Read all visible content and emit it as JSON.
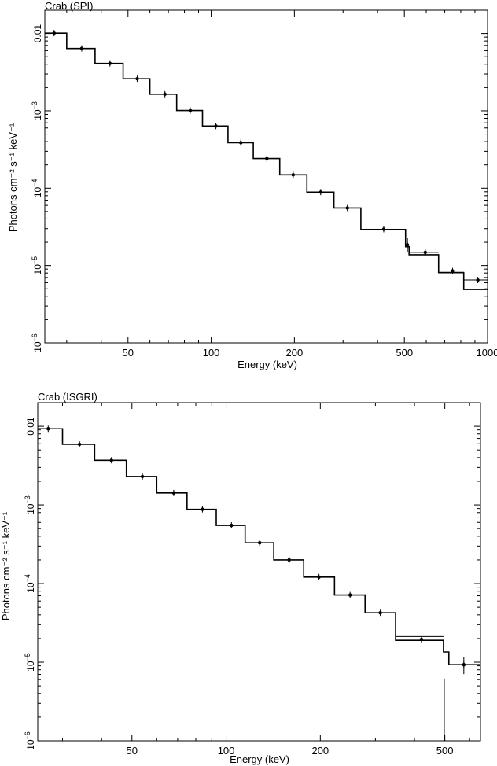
{
  "chart_data": [
    {
      "type": "step",
      "title": "Crab (SPI)",
      "xlabel": "Energy (keV)",
      "ylabel": "Photons cm⁻² s⁻¹ keV⁻¹",
      "xscale": "log",
      "yscale": "log",
      "xlim": [
        25,
        1000
      ],
      "ylim": [
        1e-06,
        0.02
      ],
      "xticks": [
        {
          "value": 50,
          "label": "50"
        },
        {
          "value": 100,
          "label": "100"
        },
        {
          "value": 200,
          "label": "200"
        },
        {
          "value": 500,
          "label": "500"
        },
        {
          "value": 1000,
          "label": "1000"
        }
      ],
      "yticks": [
        {
          "value": 0.01,
          "base": "0.01",
          "exp": ""
        },
        {
          "value": 0.001,
          "base": "10",
          "exp": "−3"
        },
        {
          "value": 0.0001,
          "base": "10",
          "exp": "−4"
        },
        {
          "value": 1e-05,
          "base": "10",
          "exp": "−5"
        },
        {
          "value": 1e-06,
          "base": "10",
          "exp": "−6"
        }
      ],
      "data_points": [
        {
          "x": 27,
          "y": 0.0101
        },
        {
          "x": 34,
          "y": 0.0064
        },
        {
          "x": 43,
          "y": 0.0041
        },
        {
          "x": 54,
          "y": 0.0026
        },
        {
          "x": 68,
          "y": 0.00164
        },
        {
          "x": 84,
          "y": 0.00101
        },
        {
          "x": 104,
          "y": 0.000635
        },
        {
          "x": 128,
          "y": 0.000388
        },
        {
          "x": 159,
          "y": 0.000242
        },
        {
          "x": 198,
          "y": 0.000149
        },
        {
          "x": 249,
          "y": 8.9e-05
        },
        {
          "x": 311,
          "y": 5.55e-05
        },
        {
          "x": 421,
          "y": 2.95e-05
        },
        {
          "x": 513,
          "y": 1.85e-05
        },
        {
          "x": 595,
          "y": 1.48e-05
        },
        {
          "x": 747,
          "y": 8.5e-06
        },
        {
          "x": 922,
          "y": 6.5e-06
        }
      ],
      "model_bins": [
        {
          "x0": 25,
          "x1": 30,
          "y": 0.0101
        },
        {
          "x0": 30,
          "x1": 38,
          "y": 0.0064
        },
        {
          "x0": 38,
          "x1": 48,
          "y": 0.0041
        },
        {
          "x0": 48,
          "x1": 60,
          "y": 0.0026
        },
        {
          "x0": 60,
          "x1": 75,
          "y": 0.00164
        },
        {
          "x0": 75,
          "x1": 93,
          "y": 0.00101
        },
        {
          "x0": 93,
          "x1": 115,
          "y": 0.000635
        },
        {
          "x0": 115,
          "x1": 142,
          "y": 0.000388
        },
        {
          "x0": 142,
          "x1": 177,
          "y": 0.000242
        },
        {
          "x0": 177,
          "x1": 222,
          "y": 0.000149
        },
        {
          "x0": 222,
          "x1": 278,
          "y": 8.9e-05
        },
        {
          "x0": 278,
          "x1": 348,
          "y": 5.55e-05
        },
        {
          "x0": 348,
          "x1": 505,
          "y": 2.93e-05
        },
        {
          "x0": 505,
          "x1": 520,
          "y": 1.75e-05
        },
        {
          "x0": 520,
          "x1": 665,
          "y": 1.38e-05
        },
        {
          "x0": 665,
          "x1": 820,
          "y": 8.1e-06
        },
        {
          "x0": 820,
          "x1": 1000,
          "y": 4.9e-06
        }
      ],
      "alt_bins": [
        {
          "x0": 520,
          "x1": 665,
          "y": 1.48e-05
        },
        {
          "x0": 665,
          "x1": 820,
          "y": 8.5e-06
        },
        {
          "x0": 820,
          "x1": 1000,
          "y": 6.5e-06
        }
      ]
    },
    {
      "type": "step",
      "title": "Crab (ISGRI)",
      "xlabel": "Energy (keV)",
      "ylabel": "Photons cm⁻² s⁻¹ keV⁻¹",
      "xscale": "log",
      "yscale": "log",
      "xlim": [
        25,
        650
      ],
      "ylim": [
        1e-06,
        0.02
      ],
      "xticks": [
        {
          "value": 50,
          "label": "50"
        },
        {
          "value": 100,
          "label": "100"
        },
        {
          "value": 200,
          "label": "200"
        },
        {
          "value": 500,
          "label": "500"
        }
      ],
      "yticks": [
        {
          "value": 0.01,
          "base": "0.01",
          "exp": ""
        },
        {
          "value": 0.001,
          "base": "10",
          "exp": "−3"
        },
        {
          "value": 0.0001,
          "base": "10",
          "exp": "−4"
        },
        {
          "value": 1e-05,
          "base": "10",
          "exp": "−5"
        },
        {
          "value": 1e-06,
          "base": "10",
          "exp": "−6"
        }
      ],
      "data_points": [
        {
          "x": 27,
          "y": 0.0093
        },
        {
          "x": 34,
          "y": 0.0059
        },
        {
          "x": 43,
          "y": 0.0037
        },
        {
          "x": 54,
          "y": 0.0023
        },
        {
          "x": 68,
          "y": 0.00142
        },
        {
          "x": 84,
          "y": 0.00088
        },
        {
          "x": 104,
          "y": 0.00055
        },
        {
          "x": 128,
          "y": 0.00033
        },
        {
          "x": 159,
          "y": 0.0002
        },
        {
          "x": 198,
          "y": 0.000121
        },
        {
          "x": 249,
          "y": 7.15e-05
        },
        {
          "x": 311,
          "y": 4.25e-05
        },
        {
          "x": 421,
          "y": 1.95e-05
        },
        {
          "x": 575,
          "y": 9.3e-06
        }
      ],
      "model_bins": [
        {
          "x0": 25,
          "x1": 30,
          "y": 0.0093
        },
        {
          "x0": 30,
          "x1": 38,
          "y": 0.0059
        },
        {
          "x0": 38,
          "x1": 48,
          "y": 0.0037
        },
        {
          "x0": 48,
          "x1": 60,
          "y": 0.0023
        },
        {
          "x0": 60,
          "x1": 75,
          "y": 0.00142
        },
        {
          "x0": 75,
          "x1": 93,
          "y": 0.00088
        },
        {
          "x0": 93,
          "x1": 115,
          "y": 0.00055
        },
        {
          "x0": 115,
          "x1": 142,
          "y": 0.00033
        },
        {
          "x0": 142,
          "x1": 177,
          "y": 0.0002
        },
        {
          "x0": 177,
          "x1": 222,
          "y": 0.000121
        },
        {
          "x0": 222,
          "x1": 278,
          "y": 7.15e-05
        },
        {
          "x0": 278,
          "x1": 348,
          "y": 4.25e-05
        },
        {
          "x0": 348,
          "x1": 495,
          "y": 1.9e-05
        },
        {
          "x0": 495,
          "x1": 515,
          "y": 1.35e-05
        },
        {
          "x0": 515,
          "x1": 650,
          "y": 9.3e-06
        }
      ],
      "alt_bins": [
        {
          "x0": 348,
          "x1": 495,
          "y": 2.12e-05
        }
      ]
    }
  ]
}
